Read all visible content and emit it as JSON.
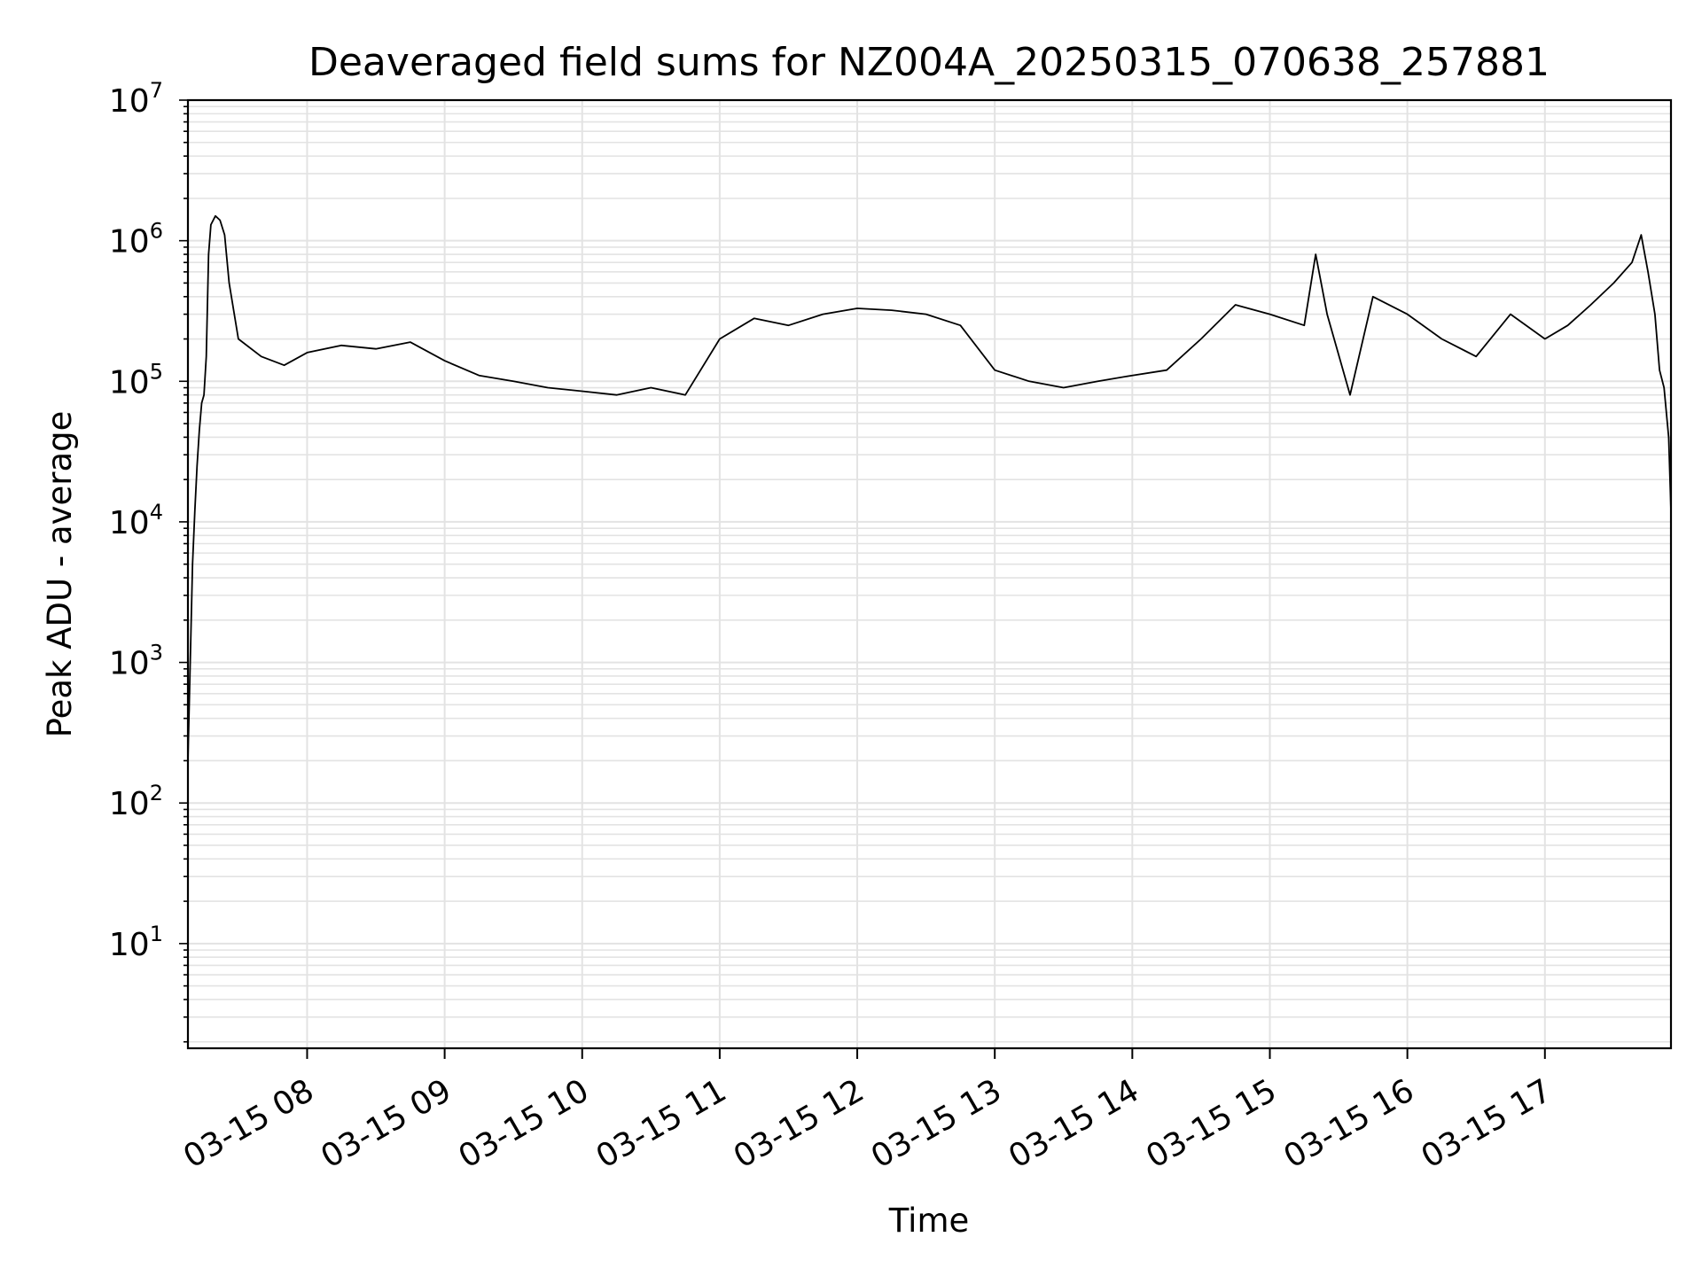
{
  "chart_data": {
    "type": "line",
    "title": "Deaveraged field sums for NZ004A_20250315_070638_257881",
    "xlabel": "Time",
    "ylabel": "Peak ADU - average",
    "yscale": "log",
    "ylim": [
      1.8,
      10000000
    ],
    "xlim": [
      "03-15 07:08",
      "03-15 17:55"
    ],
    "grid": true,
    "line_color": "#000000",
    "grid_color": "#e3e3e3",
    "x_ticks": [
      {
        "t": "03-15 08:00",
        "label": "03-15 08"
      },
      {
        "t": "03-15 09:00",
        "label": "03-15 09"
      },
      {
        "t": "03-15 10:00",
        "label": "03-15 10"
      },
      {
        "t": "03-15 11:00",
        "label": "03-15 11"
      },
      {
        "t": "03-15 12:00",
        "label": "03-15 12"
      },
      {
        "t": "03-15 13:00",
        "label": "03-15 13"
      },
      {
        "t": "03-15 14:00",
        "label": "03-15 14"
      },
      {
        "t": "03-15 15:00",
        "label": "03-15 15"
      },
      {
        "t": "03-15 16:00",
        "label": "03-15 16"
      },
      {
        "t": "03-15 17:00",
        "label": "03-15 17"
      }
    ],
    "y_ticks": [
      {
        "v": 10,
        "base": "10",
        "exp": "1"
      },
      {
        "v": 100,
        "base": "10",
        "exp": "2"
      },
      {
        "v": 1000,
        "base": "10",
        "exp": "3"
      },
      {
        "v": 10000,
        "base": "10",
        "exp": "4"
      },
      {
        "v": 100000,
        "base": "10",
        "exp": "5"
      },
      {
        "v": 1000000,
        "base": "10",
        "exp": "6"
      },
      {
        "v": 10000000,
        "base": "10",
        "exp": "7"
      }
    ],
    "series": [
      {
        "points": [
          [
            "03-15 07:08",
            200
          ],
          [
            "03-15 07:09",
            1000
          ],
          [
            "03-15 07:10",
            5000
          ],
          [
            "03-15 07:11",
            12000
          ],
          [
            "03-15 07:12",
            25000
          ],
          [
            "03-15 07:13",
            45000
          ],
          [
            "03-15 07:14",
            70000
          ],
          [
            "03-15 07:15",
            80000
          ],
          [
            "03-15 07:16",
            150000
          ],
          [
            "03-15 07:17",
            800000
          ],
          [
            "03-15 07:18",
            1300000
          ],
          [
            "03-15 07:20",
            1500000
          ],
          [
            "03-15 07:22",
            1400000
          ],
          [
            "03-15 07:24",
            1100000
          ],
          [
            "03-15 07:26",
            500000
          ],
          [
            "03-15 07:30",
            200000
          ],
          [
            "03-15 07:40",
            150000
          ],
          [
            "03-15 07:50",
            130000
          ],
          [
            "03-15 08:00",
            160000
          ],
          [
            "03-15 08:15",
            180000
          ],
          [
            "03-15 08:30",
            170000
          ],
          [
            "03-15 08:45",
            190000
          ],
          [
            "03-15 09:00",
            140000
          ],
          [
            "03-15 09:15",
            110000
          ],
          [
            "03-15 09:30",
            100000
          ],
          [
            "03-15 09:45",
            90000
          ],
          [
            "03-15 10:00",
            85000
          ],
          [
            "03-15 10:15",
            80000
          ],
          [
            "03-15 10:30",
            90000
          ],
          [
            "03-15 10:45",
            80000
          ],
          [
            "03-15 11:00",
            200000
          ],
          [
            "03-15 11:15",
            280000
          ],
          [
            "03-15 11:30",
            250000
          ],
          [
            "03-15 11:45",
            300000
          ],
          [
            "03-15 12:00",
            330000
          ],
          [
            "03-15 12:15",
            320000
          ],
          [
            "03-15 12:30",
            300000
          ],
          [
            "03-15 12:45",
            250000
          ],
          [
            "03-15 13:00",
            120000
          ],
          [
            "03-15 13:15",
            100000
          ],
          [
            "03-15 13:30",
            90000
          ],
          [
            "03-15 13:45",
            100000
          ],
          [
            "03-15 14:00",
            110000
          ],
          [
            "03-15 14:15",
            120000
          ],
          [
            "03-15 14:30",
            200000
          ],
          [
            "03-15 14:45",
            350000
          ],
          [
            "03-15 15:00",
            300000
          ],
          [
            "03-15 15:15",
            250000
          ],
          [
            "03-15 15:20",
            800000
          ],
          [
            "03-15 15:25",
            300000
          ],
          [
            "03-15 15:35",
            80000
          ],
          [
            "03-15 15:45",
            400000
          ],
          [
            "03-15 16:00",
            300000
          ],
          [
            "03-15 16:15",
            200000
          ],
          [
            "03-15 16:30",
            150000
          ],
          [
            "03-15 16:45",
            300000
          ],
          [
            "03-15 17:00",
            200000
          ],
          [
            "03-15 17:10",
            250000
          ],
          [
            "03-15 17:20",
            350000
          ],
          [
            "03-15 17:30",
            500000
          ],
          [
            "03-15 17:38",
            700000
          ],
          [
            "03-15 17:42",
            1100000
          ],
          [
            "03-15 17:45",
            600000
          ],
          [
            "03-15 17:48",
            300000
          ],
          [
            "03-15 17:50",
            120000
          ],
          [
            "03-15 17:52",
            90000
          ],
          [
            "03-15 17:54",
            40000
          ],
          [
            "03-15 17:55",
            12000
          ]
        ]
      }
    ]
  }
}
